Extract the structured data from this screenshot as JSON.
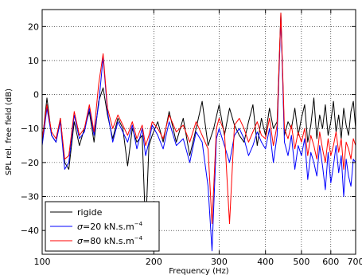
{
  "chart_data": {
    "type": "line",
    "xlabel": "Frequency (Hz)",
    "ylabel": "SPL rel. free field (dB)",
    "xscale": "log",
    "xlim": [
      100,
      700
    ],
    "ylim": [
      -47,
      25
    ],
    "grid": true,
    "legend_position": "lower-left",
    "x_ticks": [
      {
        "value": 100,
        "label": "100"
      },
      {
        "value": 200,
        "label": "200"
      },
      {
        "value": 300,
        "label": "300"
      },
      {
        "value": 400,
        "label": "400"
      },
      {
        "value": 500,
        "label": "500"
      },
      {
        "value": 600,
        "label": "600"
      },
      {
        "value": 700,
        "label": "700"
      }
    ],
    "y_ticks": [
      {
        "value": 20,
        "label": "20"
      },
      {
        "value": 10,
        "label": "10"
      },
      {
        "value": 0,
        "label": "0"
      },
      {
        "value": -10,
        "label": "−10"
      },
      {
        "value": -20,
        "label": "−20"
      },
      {
        "value": -30,
        "label": "−30"
      },
      {
        "value": -40,
        "label": "−40"
      }
    ],
    "series": [
      {
        "name": "rigide",
        "legend_prefix": "",
        "legend_main": "rigide",
        "legend_sup": "",
        "color": "#000000",
        "x": [
          100,
          103,
          106,
          109,
          112,
          115,
          118,
          122,
          126,
          130,
          134,
          138,
          142,
          146,
          150,
          155,
          160,
          165,
          170,
          175,
          180,
          186,
          190,
          194,
          198,
          205,
          212,
          220,
          230,
          240,
          250,
          260,
          270,
          280,
          290,
          300,
          310,
          320,
          330,
          340,
          350,
          360,
          370,
          380,
          390,
          400,
          410,
          420,
          430,
          440,
          450,
          460,
          470,
          480,
          490,
          500,
          510,
          520,
          530,
          540,
          550,
          560,
          570,
          580,
          590,
          600,
          610,
          620,
          630,
          640,
          650,
          660,
          670,
          680,
          690,
          700
        ],
        "y": [
          -14,
          -1,
          -12,
          -14,
          -7,
          -20,
          -22,
          -8,
          -15,
          -10,
          -5,
          -14,
          -2,
          2,
          -6,
          -13,
          -7,
          -10,
          -21,
          -10,
          -14,
          -12,
          -40,
          -15,
          -12,
          -8,
          -14,
          -5,
          -14,
          -7,
          -18,
          -10,
          -2,
          -15,
          -10,
          -3,
          -12,
          -4,
          -9,
          -12,
          -14,
          -8,
          -3,
          -15,
          -7,
          -12,
          -4,
          -10,
          -8,
          24,
          -12,
          -8,
          -10,
          -4,
          -12,
          -7,
          -3,
          -14,
          -9,
          -1,
          -13,
          -6,
          -10,
          -3,
          -12,
          -8,
          -2,
          -11,
          -6,
          -13,
          -4,
          -9,
          -12,
          -5,
          -2,
          -10
        ]
      },
      {
        "name": "σ=20 kN.s.m⁻⁴",
        "legend_prefix": "σ",
        "legend_main": "=20 kN.s.m",
        "legend_sup": "−4",
        "color": "#0000ff",
        "x": [
          100,
          103,
          106,
          109,
          112,
          115,
          118,
          122,
          126,
          130,
          134,
          138,
          142,
          146,
          150,
          155,
          160,
          165,
          170,
          175,
          180,
          186,
          190,
          194,
          198,
          205,
          212,
          220,
          230,
          240,
          250,
          260,
          270,
          280,
          287,
          295,
          300,
          310,
          320,
          330,
          340,
          350,
          360,
          370,
          380,
          390,
          400,
          410,
          420,
          430,
          440,
          450,
          460,
          470,
          480,
          490,
          500,
          510,
          520,
          530,
          540,
          550,
          560,
          570,
          580,
          590,
          600,
          610,
          620,
          630,
          640,
          650,
          660,
          670,
          680,
          690,
          700
        ],
        "y": [
          -15,
          -4,
          -12,
          -14,
          -8,
          -22,
          -20,
          -6,
          -13,
          -11,
          -4,
          -12,
          -3,
          11,
          -5,
          -14,
          -8,
          -11,
          -14,
          -9,
          -16,
          -10,
          -18,
          -14,
          -9,
          -12,
          -16,
          -8,
          -15,
          -13,
          -20,
          -11,
          -14,
          -27,
          -46,
          -13,
          -10,
          -15,
          -20,
          -12,
          -10,
          -13,
          -18,
          -15,
          -11,
          -14,
          -16,
          -10,
          -20,
          -12,
          23,
          -14,
          -18,
          -12,
          -22,
          -15,
          -18,
          -13,
          -25,
          -17,
          -20,
          -24,
          -15,
          -21,
          -28,
          -17,
          -26,
          -21,
          -15,
          -23,
          -18,
          -30,
          -19,
          -24,
          -27,
          -19,
          -20
        ]
      },
      {
        "name": "σ=80 kN.s.m⁻⁴",
        "legend_prefix": "σ",
        "legend_main": "=80 kN.s.m",
        "legend_sup": "−4",
        "color": "#ff0000",
        "x": [
          100,
          103,
          106,
          109,
          112,
          115,
          118,
          122,
          126,
          130,
          134,
          138,
          142,
          146,
          150,
          155,
          160,
          165,
          170,
          175,
          180,
          186,
          190,
          194,
          198,
          205,
          212,
          220,
          230,
          240,
          250,
          260,
          270,
          280,
          287,
          295,
          300,
          310,
          320,
          330,
          340,
          350,
          360,
          370,
          380,
          390,
          400,
          410,
          420,
          430,
          440,
          450,
          460,
          470,
          480,
          490,
          500,
          510,
          520,
          530,
          540,
          550,
          560,
          570,
          580,
          590,
          600,
          610,
          620,
          630,
          640,
          650,
          660,
          670,
          680,
          690,
          700
        ],
        "y": [
          -13,
          -3,
          -11,
          -13,
          -7,
          -19,
          -18,
          -5,
          -12,
          -10,
          -3,
          -11,
          3,
          12,
          -4,
          -10,
          -6,
          -9,
          -12,
          -8,
          -13,
          -9,
          -15,
          -12,
          -8,
          -10,
          -13,
          -6,
          -11,
          -9,
          -14,
          -8,
          -12,
          -16,
          -38,
          -10,
          -7,
          -11,
          -38,
          -9,
          -7,
          -10,
          -14,
          -11,
          -8,
          -12,
          -13,
          -7,
          -15,
          -9,
          24,
          -10,
          -13,
          -9,
          -16,
          -11,
          -14,
          -10,
          -18,
          -12,
          -15,
          -19,
          -11,
          -16,
          -20,
          -13,
          -18,
          -15,
          -11,
          -17,
          -13,
          -22,
          -14,
          -16,
          -19,
          -13,
          -15
        ]
      }
    ]
  }
}
